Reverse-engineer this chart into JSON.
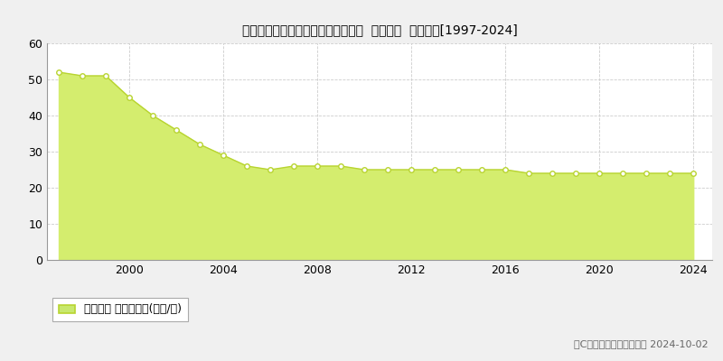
{
  "title": "大阪府岸和田市東大路町１６番６外  基準地価  地価推移[1997-2024]",
  "years": [
    1997,
    1998,
    1999,
    2000,
    2001,
    2002,
    2003,
    2004,
    2005,
    2006,
    2007,
    2008,
    2009,
    2010,
    2011,
    2012,
    2013,
    2014,
    2015,
    2016,
    2017,
    2018,
    2019,
    2020,
    2021,
    2022,
    2023,
    2024
  ],
  "values": [
    52,
    51,
    51,
    45,
    40,
    36,
    32,
    29,
    26,
    25,
    26,
    26,
    26,
    25,
    25,
    25,
    25,
    25,
    25,
    25,
    24,
    24,
    24,
    24,
    24,
    24,
    24,
    24
  ],
  "fill_color": "#d4ed6e",
  "line_color": "#b8d430",
  "marker_facecolor": "#ffffff",
  "marker_edgecolor": "#b8d430",
  "ylim": [
    0,
    60
  ],
  "yticks": [
    0,
    10,
    20,
    30,
    40,
    50,
    60
  ],
  "xticks": [
    2000,
    2004,
    2008,
    2012,
    2016,
    2020,
    2024
  ],
  "outer_bg": "#f0f0f0",
  "plot_bg": "#ffffff",
  "grid_color": "#cccccc",
  "legend_label": "基準地価 平均坪単価(万円/坪)",
  "legend_facecolor": "#c8e86e",
  "legend_edgecolor": "#b8d430",
  "copyright_text": "（C）土地価格ドットコム 2024-10-02",
  "title_fontsize": 12,
  "tick_fontsize": 9,
  "legend_fontsize": 9,
  "copyright_fontsize": 8
}
